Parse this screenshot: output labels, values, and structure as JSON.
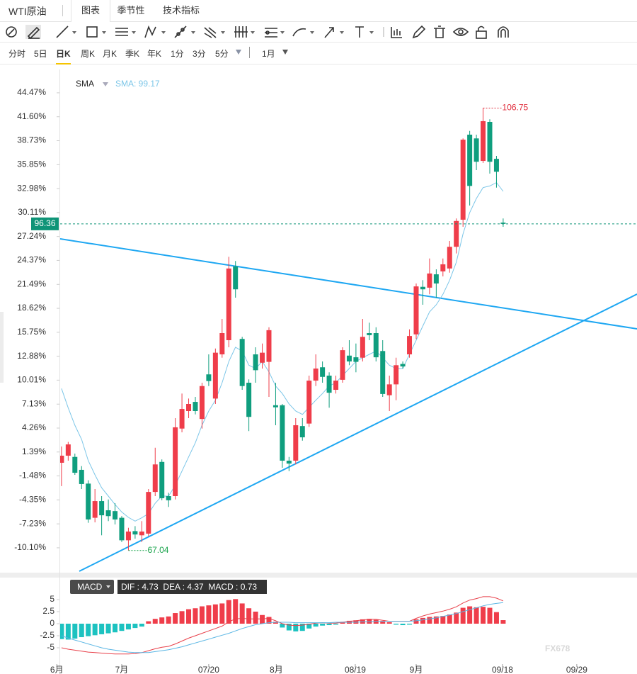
{
  "header": {
    "symbol": "WTI原油",
    "tabs": [
      "图表",
      "季节性",
      "技术指标"
    ]
  },
  "periods": [
    "分时",
    "5日",
    "日K",
    "周K",
    "月K",
    "季K",
    "年K",
    "1分",
    "3分",
    "5分"
  ],
  "range": "1月",
  "watermark": "FX678",
  "chart_data": [
    {
      "type": "candlestick",
      "indicator": "SMA",
      "indicator_label": "SMA: 99.17",
      "up_color": "#ef3d4a",
      "down_color": "#0f9e7e",
      "ylim": [
        -13.08,
        47.27
      ],
      "yticks": [
        {
          "value": 44.47,
          "label": "44.47%"
        },
        {
          "value": 41.6,
          "label": "41.60%"
        },
        {
          "value": 38.73,
          "label": "38.73%"
        },
        {
          "value": 35.85,
          "label": "35.85%"
        },
        {
          "value": 32.98,
          "label": "32.98%"
        },
        {
          "value": 30.11,
          "label": "30.11%"
        },
        {
          "value": 27.24,
          "label": "27.24%"
        },
        {
          "value": 24.37,
          "label": "24.37%"
        },
        {
          "value": 21.49,
          "label": "21.49%"
        },
        {
          "value": 18.62,
          "label": "18.62%"
        },
        {
          "value": 15.75,
          "label": "15.75%"
        },
        {
          "value": 12.88,
          "label": "12.88%"
        },
        {
          "value": 10.01,
          "label": "10.01%"
        },
        {
          "value": 7.13,
          "label": "7.13%"
        },
        {
          "value": 4.26,
          "label": "4.26%"
        },
        {
          "value": 1.39,
          "label": "1.39%"
        },
        {
          "value": -1.48,
          "label": "-1.48%"
        },
        {
          "value": -4.35,
          "label": "-4.35%"
        },
        {
          "value": -7.23,
          "label": "-7.23%"
        },
        {
          "value": -10.1,
          "label": "-10.10%"
        }
      ],
      "open": [
        0.1,
        0.95,
        0.8,
        -0.75,
        -2.4,
        -6.5,
        -4.5,
        -5.6,
        -5.7,
        -6.5,
        -9.2,
        -8.1,
        -8.6,
        -8.4,
        -3.4,
        0.2,
        -3.9,
        -3.9,
        4.2,
        6.3,
        7.4,
        5.35,
        10.7,
        7.8,
        13.1,
        14.8,
        23.65,
        14.95,
        9.7,
        13.1,
        12.1,
        12.2,
        7.0,
        7.0,
        0.35,
        0.35,
        4.5,
        4.8,
        9.95,
        11.55,
        10.55,
        8.85,
        10.05,
        12.95,
        12.75,
        12.7,
        15.65,
        15.65,
        13.5,
        8.2,
        9.5,
        11.95,
        13.1,
        15.5,
        21.2,
        21.1,
        22.7,
        23.05,
        23.4,
        26.0,
        29.25,
        39.45,
        39.0,
        36.3,
        40.98,
        36.55,
        28.9
      ],
      "high": [
        2.05,
        2.6,
        1.2,
        -0.3,
        -2.0,
        -3.05,
        -3.9,
        -4.3,
        -4.75,
        -6.3,
        -7.7,
        -7.5,
        -6.9,
        -3.05,
        1.9,
        0.5,
        -3.5,
        5.45,
        8.4,
        7.8,
        8.0,
        9.7,
        13.1,
        13.8,
        17.35,
        24.8,
        24.3,
        15.2,
        10.1,
        13.95,
        14.4,
        16.35,
        9.7,
        7.15,
        0.8,
        5.45,
        5.45,
        10.55,
        13.1,
        12.25,
        10.95,
        10.55,
        13.95,
        14.8,
        14.4,
        17.35,
        16.9,
        16.35,
        14.8,
        10.55,
        12.7,
        12.25,
        16.1,
        21.6,
        22.0,
        24.6,
        23.3,
        24.6,
        26.7,
        29.4,
        39.0,
        39.9,
        39.45,
        42.64,
        41.3,
        36.9,
        29.4
      ],
      "low": [
        -2.7,
        0.35,
        -1.35,
        -3.05,
        -7.1,
        -7.05,
        -8.6,
        -6.9,
        -7.3,
        -9.4,
        -10.42,
        -9.0,
        -9.4,
        -8.7,
        -3.9,
        -4.4,
        -5.2,
        -4.3,
        3.75,
        5.45,
        5.9,
        4.2,
        9.3,
        7.15,
        12.7,
        13.95,
        19.9,
        8.85,
        3.9,
        9.7,
        11.4,
        8.0,
        4.6,
        -0.5,
        -0.9,
        -0.1,
        2.75,
        4.4,
        9.3,
        9.7,
        6.7,
        8.4,
        9.7,
        11.8,
        10.95,
        12.25,
        14.8,
        12.25,
        8.0,
        6.3,
        7.6,
        11.4,
        12.7,
        14.95,
        19.05,
        20.3,
        19.9,
        22.45,
        22.9,
        25.2,
        28.4,
        30.95,
        35.2,
        36.05,
        34.78,
        33.1,
        28.4
      ],
      "close": [
        0.95,
        2.3,
        -1.1,
        -2.45,
        -6.7,
        -4.5,
        -6.2,
        -6.3,
        -6.7,
        -9.2,
        -8.15,
        -8.5,
        -8.15,
        -3.4,
        -0.1,
        -4.15,
        -4.4,
        4.35,
        6.55,
        7.15,
        6.3,
        9.3,
        9.9,
        13.3,
        15.65,
        23.4,
        20.9,
        9.3,
        5.6,
        11.2,
        13.3,
        16.0,
        6.75,
        0.35,
        0.0,
        4.6,
        3.15,
        9.95,
        11.4,
        10.4,
        8.5,
        9.95,
        13.6,
        12.25,
        12.2,
        15.2,
        15.4,
        12.75,
        8.35,
        9.5,
        11.8,
        11.65,
        15.3,
        21.25,
        20.9,
        22.8,
        21.6,
        23.9,
        26.0,
        29.1,
        38.85,
        33.3,
        36.2,
        41.07,
        36.2,
        35.0,
        28.75
      ],
      "sma": {
        "color": "#7cc6e8",
        "values": [
          9.0,
          6.7,
          4.6,
          2.9,
          0.35,
          -1.35,
          -2.9,
          -3.9,
          -4.9,
          -5.8,
          -6.45,
          -6.9,
          -6.5,
          -6.0,
          -4.75,
          -3.9,
          -3.9,
          -2.6,
          -0.9,
          0.8,
          2.5,
          4.6,
          6.3,
          7.6,
          9.7,
          12.25,
          13.95,
          13.5,
          11.8,
          11.4,
          12.25,
          11.0,
          9.3,
          8.4,
          7.15,
          6.3,
          5.9,
          6.75,
          7.6,
          8.4,
          9.3,
          9.7,
          10.55,
          11.4,
          12.25,
          12.7,
          13.1,
          13.5,
          12.7,
          11.8,
          11.4,
          11.4,
          13.1,
          14.8,
          16.5,
          18.2,
          19.05,
          20.3,
          22.0,
          24.15,
          27.55,
          30.1,
          31.8,
          33.1,
          33.3,
          33.7,
          32.65
        ]
      },
      "annotations": [
        {
          "label": "106.75",
          "value": 42.64,
          "color": "#e02b3a"
        },
        {
          "label": "67.04",
          "value": -10.42,
          "color": "#17a34a"
        }
      ],
      "last_price": {
        "label": "96.36",
        "value": 28.75,
        "color": "#0f9477"
      }
    },
    {
      "type": "bar",
      "indicator": "MACD",
      "legend": "DIF : 4.73  DEA : 4.37  MACD : 0.73",
      "ylim": [
        -8.09,
        9.56
      ],
      "yticks": [
        5,
        2.5,
        0,
        -2.5,
        -5
      ],
      "xlim": [
        -0.2,
        86
      ],
      "xticks": [
        {
          "value": -0.7,
          "label": "6月"
        },
        {
          "value": 9.0,
          "label": "7月"
        },
        {
          "value": 22.0,
          "label": "07/20"
        },
        {
          "value": 32.1,
          "label": "8月"
        },
        {
          "value": 43.9,
          "label": "08/19"
        },
        {
          "value": 53.0,
          "label": "9月"
        },
        {
          "value": 65.9,
          "label": "09/18"
        },
        {
          "value": 77.0,
          "label": "09/29"
        }
      ],
      "histogram": {
        "up_color": "#ef3d4a",
        "down_color": "#1cc2c0",
        "values": [
          -3.2,
          -3.3,
          -3.1,
          -2.8,
          -2.6,
          -2.4,
          -2.2,
          -2.0,
          -1.8,
          -1.5,
          -1.2,
          -0.9,
          -0.6,
          0.5,
          1.0,
          1.3,
          1.5,
          2.2,
          2.6,
          3.0,
          3.2,
          3.6,
          3.8,
          4.0,
          4.2,
          4.9,
          5.1,
          4.2,
          3.2,
          2.5,
          1.8,
          1.4,
          0.4,
          -0.8,
          -1.4,
          -1.6,
          -1.5,
          -1.0,
          -0.6,
          -0.4,
          -0.3,
          -0.2,
          0.4,
          0.6,
          0.7,
          0.9,
          1.0,
          0.8,
          0.5,
          0.3,
          -0.2,
          -0.3,
          -0.2,
          0.9,
          1.2,
          1.4,
          1.5,
          1.6,
          1.9,
          2.3,
          3.3,
          3.6,
          3.4,
          3.5,
          3.3,
          2.4,
          0.73
        ]
      },
      "dif": {
        "color": "#e8404a",
        "values": [
          -5.0,
          -5.3,
          -5.5,
          -5.7,
          -5.9,
          -6.0,
          -6.1,
          -6.2,
          -6.3,
          -6.3,
          -6.3,
          -6.2,
          -6.0,
          -5.6,
          -5.2,
          -4.9,
          -4.7,
          -4.2,
          -3.6,
          -3.0,
          -2.5,
          -2.0,
          -1.5,
          -1.0,
          -0.5,
          0.4,
          1.0,
          1.1,
          1.0,
          1.0,
          1.0,
          1.1,
          0.6,
          0.0,
          -0.3,
          -0.4,
          -0.3,
          -0.1,
          0.1,
          0.2,
          0.1,
          0.1,
          0.3,
          0.5,
          0.6,
          0.8,
          0.9,
          0.9,
          0.7,
          0.5,
          0.5,
          0.5,
          0.5,
          1.1,
          1.6,
          2.0,
          2.3,
          2.6,
          3.0,
          3.5,
          4.3,
          4.9,
          5.2,
          5.6,
          5.6,
          5.3,
          4.73
        ]
      },
      "dea": {
        "color": "#5ab6e4",
        "values": [
          -2.5,
          -3.0,
          -3.4,
          -3.8,
          -4.2,
          -4.6,
          -5.0,
          -5.3,
          -5.5,
          -5.7,
          -5.9,
          -6.0,
          -6.0,
          -6.0,
          -5.8,
          -5.6,
          -5.4,
          -5.1,
          -4.8,
          -4.4,
          -4.0,
          -3.6,
          -3.2,
          -2.8,
          -2.4,
          -2.0,
          -1.5,
          -1.0,
          -0.6,
          -0.2,
          0.0,
          0.2,
          0.3,
          0.3,
          0.3,
          0.2,
          0.2,
          0.2,
          0.2,
          0.2,
          0.2,
          0.3,
          0.3,
          0.3,
          0.3,
          0.4,
          0.4,
          0.5,
          0.5,
          0.5,
          0.5,
          0.5,
          0.5,
          0.6,
          0.8,
          1.0,
          1.2,
          1.5,
          1.8,
          2.1,
          2.5,
          2.9,
          3.3,
          3.7,
          4.0,
          4.2,
          4.37
        ]
      }
    }
  ]
}
